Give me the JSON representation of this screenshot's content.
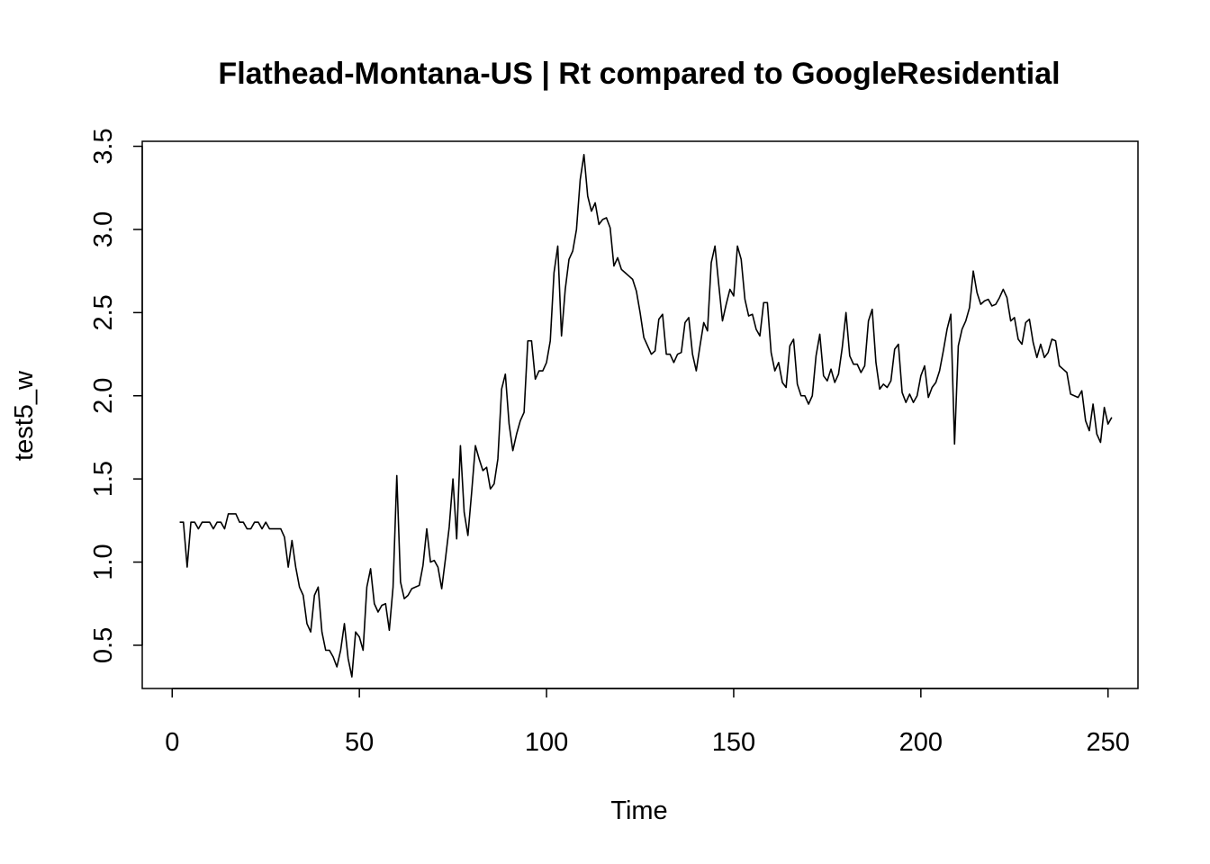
{
  "chart_data": {
    "type": "line",
    "title": "Flathead-Montana-US | Rt compared to GoogleResidential",
    "xlabel": "Time",
    "ylabel": "test5_w",
    "xlim": [
      -8,
      258
    ],
    "ylim": [
      0.24,
      3.53
    ],
    "x_ticks": [
      0,
      50,
      100,
      150,
      200,
      250
    ],
    "y_ticks": [
      0.5,
      1.0,
      1.5,
      2.0,
      2.5,
      3.0,
      3.5
    ],
    "x_tick_labels": [
      "0",
      "50",
      "100",
      "150",
      "200",
      "250"
    ],
    "y_tick_labels": [
      "0.5",
      "1.0",
      "1.5",
      "2.0",
      "2.5",
      "3.0",
      "3.5"
    ],
    "grid": false,
    "legend": "none",
    "series": [
      {
        "name": "test5_w",
        "x_start": 2,
        "values": [
          1.24,
          1.24,
          0.97,
          1.24,
          1.24,
          1.2,
          1.24,
          1.24,
          1.24,
          1.2,
          1.24,
          1.24,
          1.2,
          1.29,
          1.29,
          1.29,
          1.24,
          1.24,
          1.2,
          1.2,
          1.24,
          1.24,
          1.2,
          1.24,
          1.2,
          1.2,
          1.2,
          1.2,
          1.15,
          0.97,
          1.13,
          0.97,
          0.85,
          0.8,
          0.63,
          0.58,
          0.8,
          0.85,
          0.58,
          0.47,
          0.47,
          0.43,
          0.37,
          0.47,
          0.63,
          0.42,
          0.31,
          0.58,
          0.55,
          0.47,
          0.85,
          0.96,
          0.75,
          0.7,
          0.74,
          0.75,
          0.59,
          0.85,
          1.52,
          0.88,
          0.78,
          0.8,
          0.84,
          0.85,
          0.86,
          0.98,
          1.2,
          1.0,
          1.01,
          0.97,
          0.84,
          1.02,
          1.21,
          1.5,
          1.14,
          1.7,
          1.3,
          1.16,
          1.42,
          1.7,
          1.62,
          1.55,
          1.57,
          1.44,
          1.47,
          1.62,
          2.04,
          2.13,
          1.83,
          1.67,
          1.77,
          1.85,
          1.9,
          2.33,
          2.33,
          2.1,
          2.15,
          2.15,
          2.2,
          2.33,
          2.74,
          2.9,
          2.36,
          2.64,
          2.82,
          2.87,
          3.0,
          3.3,
          3.45,
          3.2,
          3.11,
          3.16,
          3.03,
          3.06,
          3.07,
          3.01,
          2.78,
          2.83,
          2.76,
          2.74,
          2.72,
          2.7,
          2.63,
          2.5,
          2.35,
          2.3,
          2.25,
          2.27,
          2.46,
          2.49,
          2.25,
          2.25,
          2.2,
          2.25,
          2.26,
          2.44,
          2.47,
          2.25,
          2.15,
          2.3,
          2.44,
          2.39,
          2.8,
          2.9,
          2.67,
          2.45,
          2.55,
          2.64,
          2.6,
          2.9,
          2.82,
          2.58,
          2.48,
          2.49,
          2.4,
          2.36,
          2.56,
          2.56,
          2.26,
          2.15,
          2.2,
          2.08,
          2.05,
          2.3,
          2.34,
          2.07,
          2.0,
          2.0,
          1.95,
          2.0,
          2.24,
          2.37,
          2.12,
          2.09,
          2.16,
          2.08,
          2.13,
          2.29,
          2.5,
          2.24,
          2.19,
          2.19,
          2.14,
          2.18,
          2.45,
          2.52,
          2.2,
          2.04,
          2.07,
          2.05,
          2.09,
          2.28,
          2.31,
          2.02,
          1.96,
          2.01,
          1.96,
          2.0,
          2.12,
          2.18,
          1.99,
          2.05,
          2.08,
          2.15,
          2.27,
          2.4,
          2.49,
          1.71,
          2.3,
          2.4,
          2.45,
          2.53,
          2.75,
          2.62,
          2.55,
          2.57,
          2.58,
          2.54,
          2.55,
          2.59,
          2.64,
          2.59,
          2.45,
          2.47,
          2.34,
          2.31,
          2.44,
          2.46,
          2.32,
          2.23,
          2.31,
          2.23,
          2.26,
          2.34,
          2.33,
          2.18,
          2.16,
          2.14,
          2.01,
          2.0,
          1.99,
          2.03,
          1.85,
          1.79,
          1.95,
          1.77,
          1.72,
          1.93,
          1.83,
          1.87
        ]
      }
    ]
  }
}
